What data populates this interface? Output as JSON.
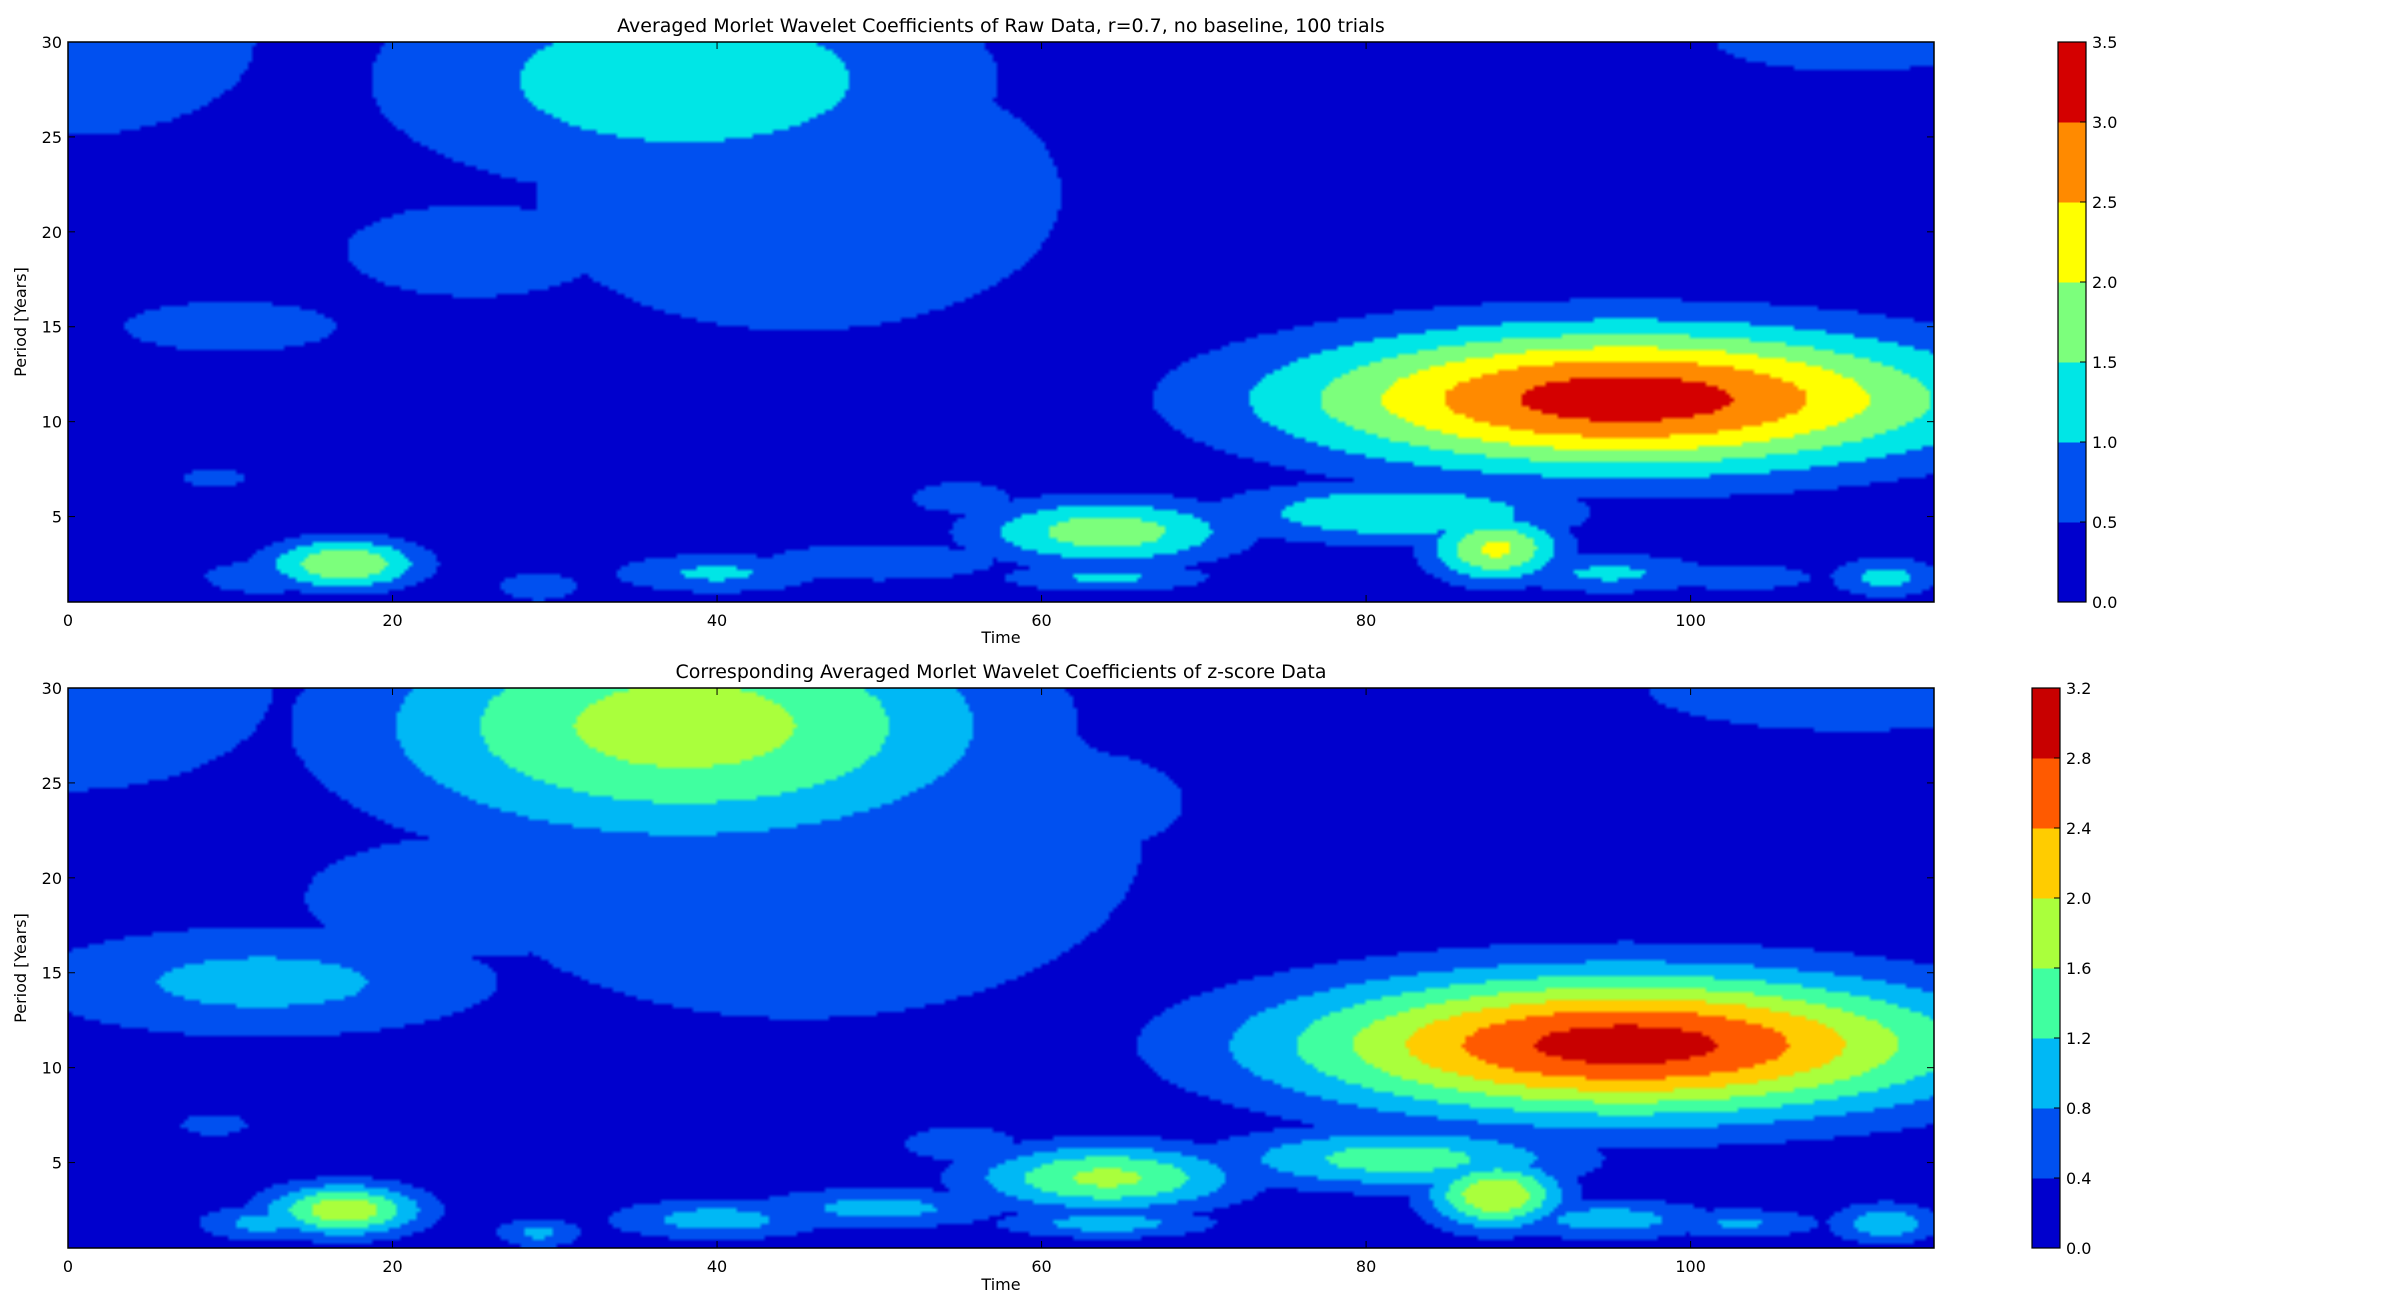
{
  "figure": {
    "panel_colors": [
      "#0000cd",
      "#0050f0",
      "#00a8ff",
      "#00e6e6",
      "#7cff7c",
      "#ffff00",
      "#ff8a00",
      "#d40000"
    ]
  },
  "chart_data": [
    {
      "type": "heatmap",
      "title": "Averaged Morlet Wavelet Coefficients of Raw Data, r=0.7, no baseline, 100 trials",
      "xlabel": "Time",
      "ylabel": "Period [Years]",
      "xlim": [
        0,
        115
      ],
      "ylim": [
        0.5,
        30
      ],
      "xticks": [
        0,
        20,
        40,
        60,
        80,
        100
      ],
      "yticks": [
        5,
        10,
        15,
        20,
        25,
        30
      ],
      "colorbar": {
        "levels": [
          0.0,
          0.5,
          1.0,
          1.5,
          2.0,
          2.5,
          3.0,
          3.5
        ],
        "tick_labels": [
          "0.0",
          "0.5",
          "1.0",
          "1.5",
          "2.0",
          "2.5",
          "3.0",
          "3.5"
        ],
        "colors": [
          "#0000cd",
          "#0050f0",
          "#00e6e6",
          "#7cff7c",
          "#ffff00",
          "#ff8a00",
          "#d40000"
        ]
      },
      "features": [
        {
          "x": 0,
          "y": 30,
          "sx": 14,
          "sy": 6,
          "v": 0.7
        },
        {
          "x": 10,
          "y": 15,
          "sx": 9,
          "sy": 1.8,
          "v": 0.65
        },
        {
          "x": 25,
          "y": 19,
          "sx": 13,
          "sy": 4,
          "v": 0.6
        },
        {
          "x": 45,
          "y": 22,
          "sx": 18,
          "sy": 8,
          "v": 0.75
        },
        {
          "x": 38,
          "y": 28,
          "sx": 14,
          "sy": 4.5,
          "v": 1.3
        },
        {
          "x": 40,
          "y": 28,
          "sx": 7,
          "sy": 2.5,
          "v": 0.55
        },
        {
          "x": 60,
          "y": 24,
          "sx": 10,
          "sy": 4,
          "v": 0.5
        },
        {
          "x": 110,
          "y": 30,
          "sx": 14,
          "sy": 2.5,
          "v": 0.6
        },
        {
          "x": 55,
          "y": 6,
          "sx": 5,
          "sy": 1.3,
          "v": 0.6
        },
        {
          "x": 9,
          "y": 7,
          "sx": 3,
          "sy": 0.8,
          "v": 0.6
        },
        {
          "x": 96,
          "y": 11.2,
          "sx": 15,
          "sy": 2.7,
          "v": 3.3
        },
        {
          "x": 75,
          "y": 10,
          "sx": 10,
          "sy": 3,
          "v": 0.55
        },
        {
          "x": 64,
          "y": 4.2,
          "sx": 6,
          "sy": 1.3,
          "v": 1.8
        },
        {
          "x": 82,
          "y": 5.2,
          "sx": 8,
          "sy": 1.2,
          "v": 1.5
        },
        {
          "x": 88,
          "y": 3.3,
          "sx": 3,
          "sy": 1.3,
          "v": 2.1
        },
        {
          "x": 17,
          "y": 2.5,
          "sx": 3.5,
          "sy": 1.0,
          "v": 2.0
        },
        {
          "x": 12,
          "y": 1.8,
          "sx": 3,
          "sy": 0.7,
          "v": 1.0
        },
        {
          "x": 40,
          "y": 2.0,
          "sx": 5,
          "sy": 0.8,
          "v": 1.1
        },
        {
          "x": 50,
          "y": 2.6,
          "sx": 6,
          "sy": 0.8,
          "v": 1.0
        },
        {
          "x": 64,
          "y": 1.8,
          "sx": 5,
          "sy": 0.6,
          "v": 1.1
        },
        {
          "x": 29,
          "y": 1.3,
          "sx": 2,
          "sy": 0.6,
          "v": 1.0
        },
        {
          "x": 95,
          "y": 2.0,
          "sx": 5,
          "sy": 0.8,
          "v": 1.1
        },
        {
          "x": 112,
          "y": 1.8,
          "sx": 2.5,
          "sy": 0.8,
          "v": 1.2
        },
        {
          "x": 103,
          "y": 1.8,
          "sx": 4,
          "sy": 0.6,
          "v": 0.9
        }
      ]
    },
    {
      "type": "heatmap",
      "title": "Corresponding Averaged Morlet Wavelet Coefficients of z-score Data",
      "xlabel": "Time",
      "ylabel": "Period [Years]",
      "xlim": [
        0,
        115
      ],
      "ylim": [
        0.5,
        30
      ],
      "xticks": [
        0,
        20,
        40,
        60,
        80,
        100
      ],
      "yticks": [
        5,
        10,
        15,
        20,
        25,
        30
      ],
      "colorbar": {
        "levels": [
          0.0,
          0.4,
          0.8,
          1.2,
          1.6,
          2.0,
          2.4,
          2.8,
          3.2
        ],
        "tick_labels": [
          "0.0",
          "0.4",
          "0.8",
          "1.2",
          "1.6",
          "2.0",
          "2.4",
          "2.8",
          "3.2"
        ],
        "colors": [
          "#0000cd",
          "#0050f0",
          "#00b8f5",
          "#40ffa0",
          "#aaff3c",
          "#ffcc00",
          "#ff5a00",
          "#c80000"
        ]
      },
      "features": [
        {
          "x": 0,
          "y": 30,
          "sx": 14,
          "sy": 6,
          "v": 0.6
        },
        {
          "x": 12,
          "y": 14.5,
          "sx": 11,
          "sy": 2.2,
          "v": 0.95
        },
        {
          "x": 25,
          "y": 19,
          "sx": 13,
          "sy": 4,
          "v": 0.55
        },
        {
          "x": 45,
          "y": 22,
          "sx": 18,
          "sy": 8,
          "v": 0.8
        },
        {
          "x": 38,
          "y": 28,
          "sx": 14,
          "sy": 4.5,
          "v": 1.8
        },
        {
          "x": 62,
          "y": 24,
          "sx": 10,
          "sy": 4,
          "v": 0.5
        },
        {
          "x": 110,
          "y": 30,
          "sx": 14,
          "sy": 2.5,
          "v": 0.6
        },
        {
          "x": 55,
          "y": 6,
          "sx": 5,
          "sy": 1.3,
          "v": 0.5
        },
        {
          "x": 9,
          "y": 7,
          "sx": 3,
          "sy": 0.8,
          "v": 0.5
        },
        {
          "x": 96,
          "y": 11.2,
          "sx": 15,
          "sy": 2.7,
          "v": 3.0
        },
        {
          "x": 75,
          "y": 10,
          "sx": 10,
          "sy": 3,
          "v": 0.5
        },
        {
          "x": 64,
          "y": 4.2,
          "sx": 6,
          "sy": 1.3,
          "v": 1.7
        },
        {
          "x": 82,
          "y": 5.2,
          "sx": 8,
          "sy": 1.2,
          "v": 1.4
        },
        {
          "x": 88,
          "y": 3.3,
          "sx": 3,
          "sy": 1.3,
          "v": 2.0
        },
        {
          "x": 17,
          "y": 2.5,
          "sx": 3.5,
          "sy": 1.0,
          "v": 1.9
        },
        {
          "x": 12,
          "y": 1.8,
          "sx": 3,
          "sy": 0.7,
          "v": 0.95
        },
        {
          "x": 40,
          "y": 2.0,
          "sx": 5,
          "sy": 0.8,
          "v": 1.0
        },
        {
          "x": 50,
          "y": 2.6,
          "sx": 6,
          "sy": 0.8,
          "v": 0.95
        },
        {
          "x": 64,
          "y": 1.8,
          "sx": 5,
          "sy": 0.6,
          "v": 1.0
        },
        {
          "x": 29,
          "y": 1.3,
          "sx": 2,
          "sy": 0.6,
          "v": 0.9
        },
        {
          "x": 95,
          "y": 2.0,
          "sx": 5,
          "sy": 0.8,
          "v": 1.0
        },
        {
          "x": 112,
          "y": 1.8,
          "sx": 2.5,
          "sy": 0.8,
          "v": 1.1
        },
        {
          "x": 103,
          "y": 1.8,
          "sx": 4,
          "sy": 0.6,
          "v": 0.85
        }
      ]
    }
  ]
}
